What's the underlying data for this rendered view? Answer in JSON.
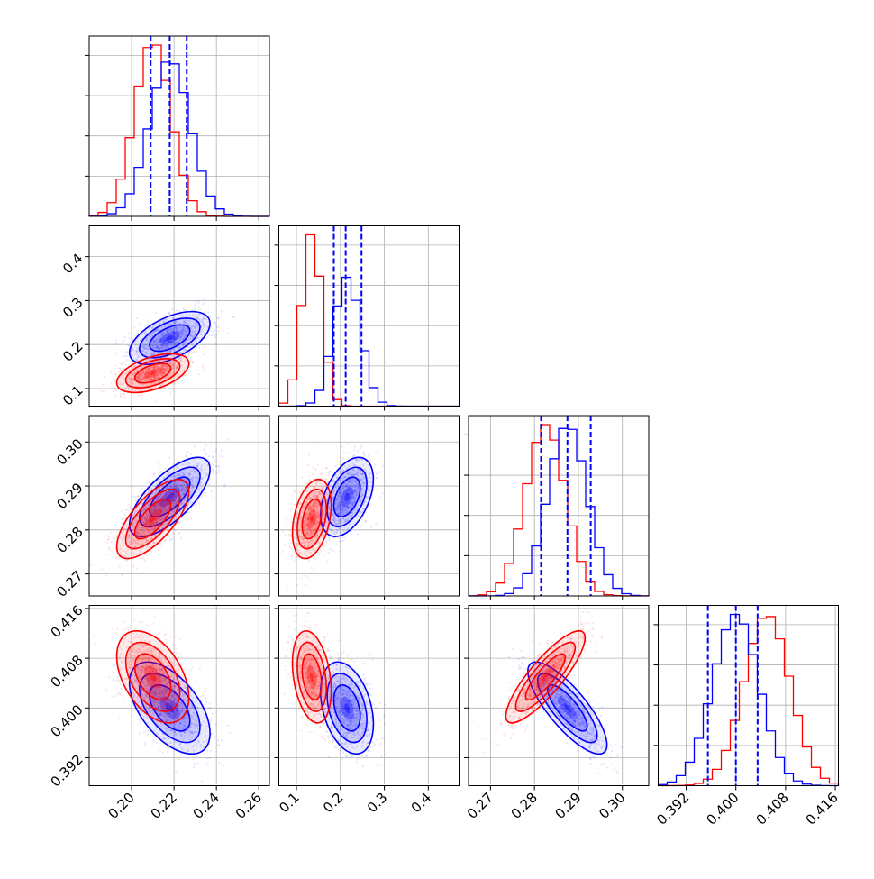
{
  "colors": {
    "series_a": "#0000ff",
    "series_b": "#ff0000",
    "grid": "#b0b0b0",
    "frame": "#000000"
  },
  "chart_data": {
    "type": "corner",
    "parameters": [
      {
        "range": [
          0.18,
          0.265
        ],
        "ticks": [
          "0.20",
          "0.22",
          "0.24",
          "0.26"
        ],
        "tick_values": [
          0.2,
          0.22,
          0.24,
          0.26
        ]
      },
      {
        "range": [
          0.06,
          0.47
        ],
        "ticks": [
          "0.1",
          "0.2",
          "0.3",
          "0.4"
        ],
        "tick_values": [
          0.1,
          0.2,
          0.3,
          0.4
        ]
      },
      {
        "range": [
          0.265,
          0.306
        ],
        "ticks": [
          "0.27",
          "0.28",
          "0.29",
          "0.30"
        ],
        "tick_values": [
          0.27,
          0.28,
          0.29,
          0.3
        ]
      },
      {
        "range": [
          0.3875,
          0.4165
        ],
        "ticks": [
          "0.392",
          "0.400",
          "0.408",
          "0.416"
        ],
        "tick_values": [
          0.392,
          0.4,
          0.408,
          0.416
        ]
      }
    ],
    "grid": true,
    "series": [
      {
        "color": "#0000ff",
        "mean": [
          0.218,
          0.215,
          0.2875,
          0.4
        ],
        "sd": [
          0.0095,
          0.03,
          0.0045,
          0.0037
        ],
        "corr": [
          [
            1,
            0.55,
            0.7,
            -0.55
          ],
          [
            0.55,
            1,
            0.45,
            -0.35
          ],
          [
            0.7,
            0.45,
            1,
            -0.8
          ],
          [
            -0.55,
            -0.35,
            -0.8,
            1
          ]
        ],
        "quantiles": [
          [
            0.209,
            0.218,
            0.226
          ],
          [
            0.185,
            0.212,
            0.248
          ],
          [
            0.2815,
            0.2875,
            0.2928
          ],
          [
            0.3955,
            0.4,
            0.4035
          ]
        ]
      },
      {
        "color": "#ff0000",
        "mean": [
          0.21,
          0.135,
          0.2825,
          0.405
        ],
        "sd": [
          0.0085,
          0.022,
          0.0045,
          0.0037
        ],
        "corr": [
          [
            1,
            0.5,
            0.7,
            -0.45
          ],
          [
            0.5,
            1,
            0.35,
            -0.3
          ],
          [
            0.7,
            0.35,
            1,
            0.85
          ],
          [
            -0.45,
            -0.3,
            0.85,
            1
          ]
        ]
      }
    ]
  }
}
